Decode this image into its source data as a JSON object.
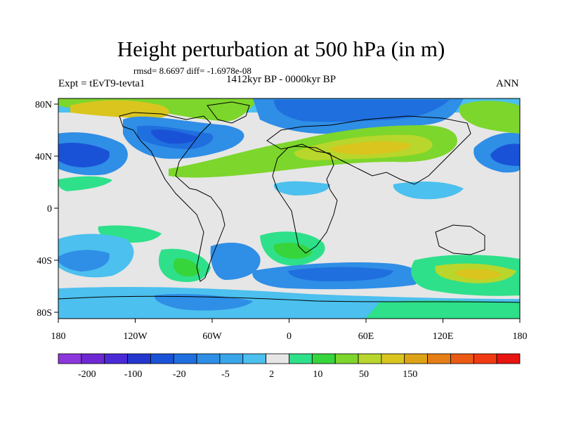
{
  "title": "Height perturbation at 500 hPa (in m)",
  "stats": "rmsd= 8.6697 diff= -1.6978e-08",
  "period": "1412kyr BP - 0000kyr BP",
  "experiment": "Expt = tEvT9-tevta1",
  "season": "ANN",
  "x_ticks": [
    "180",
    "120W",
    "60W",
    "0",
    "60E",
    "120E",
    "180"
  ],
  "y_ticks": [
    "80N",
    "40N",
    "0",
    "40S",
    "80S"
  ],
  "colorbar": {
    "colors": [
      "#8c37dc",
      "#6e28d2",
      "#4b2ad6",
      "#2437cf",
      "#1a52d7",
      "#1f6fde",
      "#2f8ee6",
      "#3aa6ea",
      "#4cc0ee",
      "#e6e6e6",
      "#2ee08a",
      "#37d53c",
      "#7dd62b",
      "#b8d62b",
      "#d9c51e",
      "#dda316",
      "#e57e15",
      "#eb5a14",
      "#f23a12",
      "#e81410"
    ],
    "labels": [
      "-200",
      "-100",
      "-20",
      "-5",
      "2",
      "10",
      "50",
      "150"
    ]
  }
}
